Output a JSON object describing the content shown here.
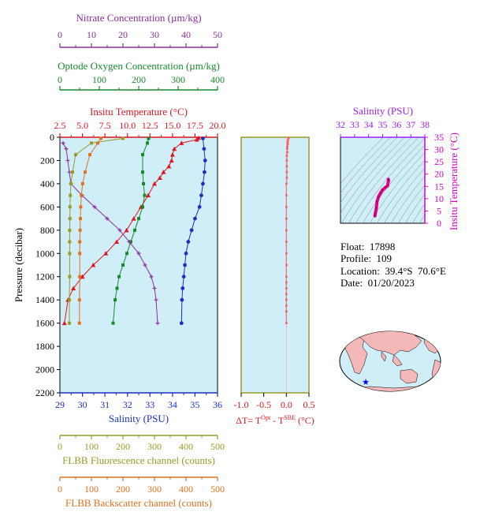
{
  "chart_data": [
    {
      "type": "line",
      "ylabel": "Pressure (decibar)",
      "ylim": [
        2200,
        0
      ],
      "y_ticks": [
        "0",
        "200",
        "400",
        "600",
        "800",
        "1000",
        "1200",
        "1400",
        "1600",
        "1800",
        "2000",
        "2200"
      ],
      "x_axes": [
        {
          "name": "Nitrate Concentration (µm/kg)",
          "color": "#8b2fa0",
          "range": [
            0,
            50
          ],
          "ticks": [
            "0",
            "10",
            "20",
            "30",
            "40",
            "50"
          ]
        },
        {
          "name": "Optode Oxygen Concentration (µm/kg)",
          "color": "#168a2a",
          "range": [
            0,
            400
          ],
          "ticks": [
            "0",
            "100",
            "200",
            "300",
            "400"
          ]
        },
        {
          "name": "Insitu Temperature (°C)",
          "color": "#e0141c",
          "range": [
            2.5,
            20
          ],
          "ticks": [
            "2.5",
            "5.0",
            "7.5",
            "10.0",
            "12.5",
            "15.0",
            "17.5",
            "20.0"
          ]
        },
        {
          "name": "Salinity (PSU)",
          "color": "#1830c8",
          "range": [
            29,
            36
          ],
          "ticks": [
            "29",
            "30",
            "31",
            "32",
            "33",
            "34",
            "35",
            "36"
          ]
        },
        {
          "name": "FLBB Fluorescence channel (counts)",
          "color": "#9a9a28",
          "range": [
            0,
            500
          ],
          "ticks": [
            "0",
            "100",
            "200",
            "300",
            "400",
            "500"
          ]
        },
        {
          "name": "FLBB Backscatter channel (counts)",
          "color": "#e2701e",
          "range": [
            0,
            500
          ],
          "ticks": [
            "0",
            "100",
            "200",
            "300",
            "400",
            "500"
          ]
        }
      ],
      "series": [
        {
          "name": "Insitu Temperature (°C)",
          "color": "#e0141c",
          "marker": "triangle",
          "x": [
            17.9,
            17.7,
            16.0,
            15.2,
            15.0,
            14.9,
            14.6,
            14.0,
            13.6,
            13.0,
            12.3,
            11.5,
            10.7,
            9.9,
            8.8,
            7.6,
            6.2,
            5.0,
            4.0,
            3.4,
            3.0
          ],
          "y": [
            5,
            20,
            50,
            100,
            150,
            200,
            250,
            300,
            350,
            400,
            500,
            600,
            700,
            800,
            900,
            1000,
            1100,
            1200,
            1300,
            1400,
            1600
          ]
        },
        {
          "name": "Salinity (PSU)",
          "color": "#1830c8",
          "marker": "circle",
          "x": [
            35.35,
            35.4,
            35.45,
            35.42,
            35.35,
            35.28,
            35.2,
            35.0,
            34.85,
            34.7,
            34.6,
            34.55,
            34.5,
            34.45,
            34.42,
            34.4
          ],
          "y": [
            10,
            100,
            200,
            300,
            400,
            500,
            600,
            700,
            800,
            900,
            1000,
            1100,
            1200,
            1300,
            1400,
            1600
          ]
        },
        {
          "name": "Optode Oxygen Concentration (µm/kg)",
          "color": "#168a2a",
          "marker": "square",
          "x": [
            225,
            222,
            210,
            210,
            212,
            215,
            210,
            200,
            190,
            180,
            170,
            160,
            150,
            145,
            140,
            135
          ],
          "y": [
            10,
            50,
            150,
            300,
            400,
            500,
            600,
            700,
            800,
            900,
            1000,
            1100,
            1200,
            1300,
            1400,
            1600
          ]
        },
        {
          "name": "Nitrate Concentration (µm/kg)",
          "color": "#8b2fa0",
          "marker": "plus",
          "x": [
            1,
            2,
            2.5,
            3,
            3.5,
            7,
            11,
            15,
            19,
            22,
            25,
            27,
            29,
            30,
            30.5,
            31
          ],
          "y": [
            50,
            100,
            200,
            300,
            400,
            500,
            600,
            700,
            800,
            900,
            1000,
            1100,
            1200,
            1300,
            1400,
            1600
          ]
        },
        {
          "name": "FLBB Fluorescence channel (counts)",
          "color": "#9a9a28",
          "marker": "square",
          "x": [
            200,
            100,
            50,
            40,
            35,
            33,
            32,
            32,
            31,
            31,
            31,
            31,
            30,
            30
          ],
          "y": [
            10,
            50,
            150,
            300,
            400,
            500,
            600,
            700,
            800,
            900,
            1000,
            1200,
            1400,
            1600
          ]
        },
        {
          "name": "FLBB Backscatter channel (counts)",
          "color": "#e2701e",
          "marker": "square",
          "x": [
            130,
            120,
            95,
            80,
            72,
            68,
            66,
            65,
            64,
            63,
            63,
            63,
            62,
            62
          ],
          "y": [
            10,
            50,
            150,
            300,
            400,
            500,
            600,
            700,
            800,
            900,
            1000,
            1200,
            1400,
            1600
          ]
        }
      ]
    },
    {
      "type": "scatter",
      "xlabel": "ΔT= T",
      "xlabel_sup1": "Opt",
      "xlabel_mid": " - T",
      "xlabel_sup2": "SBE",
      "xlabel_end": " (°C)",
      "color": "#e0141c",
      "xlim": [
        -1.0,
        0.5
      ],
      "x_ticks": [
        "-1.0",
        "-0.5",
        "0.0",
        "0.5"
      ],
      "ylim": [
        2200,
        0
      ],
      "series": [
        {
          "x": [
            0.05,
            0.04,
            0.03,
            0.03,
            0.02,
            0.02,
            0.02,
            0.01,
            0.01,
            0.01,
            0.01,
            0.01,
            0.0,
            0.0,
            0.0,
            0.0,
            0.0,
            0.0,
            0.0,
            0.0,
            0.0,
            0.0,
            0.0,
            0.0,
            0.0,
            0.0,
            0.0,
            0.0
          ],
          "y": [
            5,
            20,
            40,
            60,
            80,
            100,
            130,
            160,
            200,
            250,
            300,
            350,
            400,
            500,
            600,
            700,
            800,
            900,
            1000,
            1100,
            1200,
            1250,
            1300,
            1350,
            1400,
            1450,
            1500,
            1600
          ]
        }
      ]
    },
    {
      "type": "scatter",
      "x_title": "Salinity (PSU)",
      "x_color": "#a020f0",
      "xlim": [
        32,
        38
      ],
      "x_ticks": [
        "32",
        "33",
        "34",
        "35",
        "36",
        "37",
        "38"
      ],
      "y_title": "Insitu Temperature (°C)",
      "y_color": "#d800c8",
      "ylim": [
        0,
        35
      ],
      "y_ticks": [
        "0",
        "5",
        "10",
        "15",
        "20",
        "25",
        "30",
        "35"
      ],
      "series": [
        {
          "x": [
            35.4,
            35.42,
            35.35,
            35.2,
            35.0,
            34.85,
            34.7,
            34.6,
            34.55,
            34.48,
            34.45
          ],
          "y": [
            17.9,
            17.5,
            15.2,
            14.6,
            13.6,
            12.3,
            10.7,
            8.8,
            6.2,
            4.0,
            3.0
          ]
        }
      ]
    }
  ],
  "info": {
    "float": "Float:  17898",
    "profile": "Profile:  109",
    "location": "Location:  39.4°S  70.6°E",
    "date": "Date:  01/20/2023"
  }
}
